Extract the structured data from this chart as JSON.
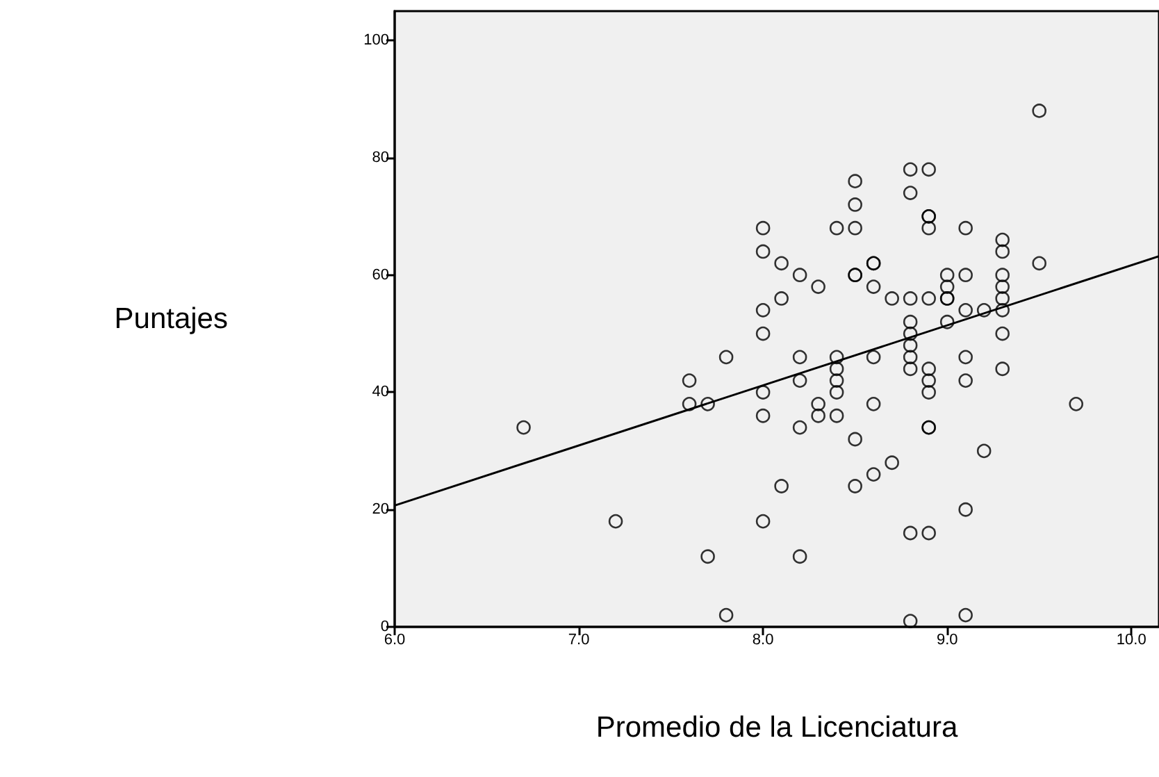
{
  "chart_data": {
    "type": "scatter",
    "xlabel": "Promedio de la Licenciatura",
    "ylabel": "Puntajes",
    "xlim": [
      6,
      10.15
    ],
    "ylim": [
      0,
      105
    ],
    "xticks": [
      {
        "value": 6,
        "label": "6.0"
      },
      {
        "value": 7,
        "label": "7.0"
      },
      {
        "value": 8,
        "label": "8.0"
      },
      {
        "value": 9,
        "label": "9.0"
      },
      {
        "value": 10,
        "label": "10.0"
      }
    ],
    "yticks": [
      0,
      20,
      40,
      60,
      80,
      100
    ],
    "grid": false,
    "marker": "circle",
    "series": [
      {
        "color": "#000000",
        "x": [
          6.7,
          7.2,
          7.6,
          7.6,
          7.7,
          7.7,
          7.8,
          7.8,
          8.0,
          8.0,
          8.0,
          8.0,
          8.0,
          8.0,
          8.0,
          8.1,
          8.1,
          8.1,
          8.2,
          8.2,
          8.2,
          8.2,
          8.2,
          8.3,
          8.3,
          8.3,
          8.4,
          8.4,
          8.4,
          8.4,
          8.4,
          8.4,
          8.5,
          8.5,
          8.5,
          8.5,
          8.5,
          8.5,
          8.5,
          8.6,
          8.6,
          8.6,
          8.6,
          8.6,
          8.6,
          8.7,
          8.7,
          8.8,
          8.8,
          8.8,
          8.8,
          8.8,
          8.8,
          8.8,
          8.8,
          8.8,
          8.8,
          8.9,
          8.9,
          8.9,
          8.9,
          8.9,
          8.9,
          8.9,
          8.9,
          8.9,
          8.9,
          8.9,
          9.0,
          9.0,
          9.0,
          9.0,
          9.0,
          9.1,
          9.1,
          9.1,
          9.1,
          9.1,
          9.1,
          9.1,
          9.2,
          9.2,
          9.3,
          9.3,
          9.3,
          9.3,
          9.3,
          9.3,
          9.3,
          9.3,
          9.5,
          9.5,
          9.7
        ],
        "values": [
          34,
          18,
          42,
          38,
          38,
          12,
          46,
          2,
          68,
          64,
          54,
          50,
          40,
          36,
          18,
          62,
          56,
          24,
          60,
          46,
          42,
          34,
          12,
          58,
          38,
          36,
          68,
          46,
          44,
          42,
          40,
          36,
          76,
          72,
          68,
          60,
          60,
          32,
          24,
          62,
          62,
          58,
          46,
          38,
          26,
          56,
          28,
          78,
          74,
          56,
          52,
          50,
          48,
          46,
          44,
          16,
          1,
          78,
          70,
          70,
          68,
          56,
          44,
          42,
          40,
          34,
          34,
          16,
          60,
          58,
          56,
          56,
          52,
          68,
          60,
          54,
          46,
          42,
          20,
          2,
          54,
          30,
          66,
          64,
          60,
          58,
          56,
          54,
          50,
          44,
          88,
          62,
          38
        ]
      },
      {
        "type": "line",
        "color": "#000000",
        "marker": "none",
        "x": [
          6,
          10.15
        ],
        "values": [
          20.7,
          63.2
        ]
      }
    ]
  }
}
